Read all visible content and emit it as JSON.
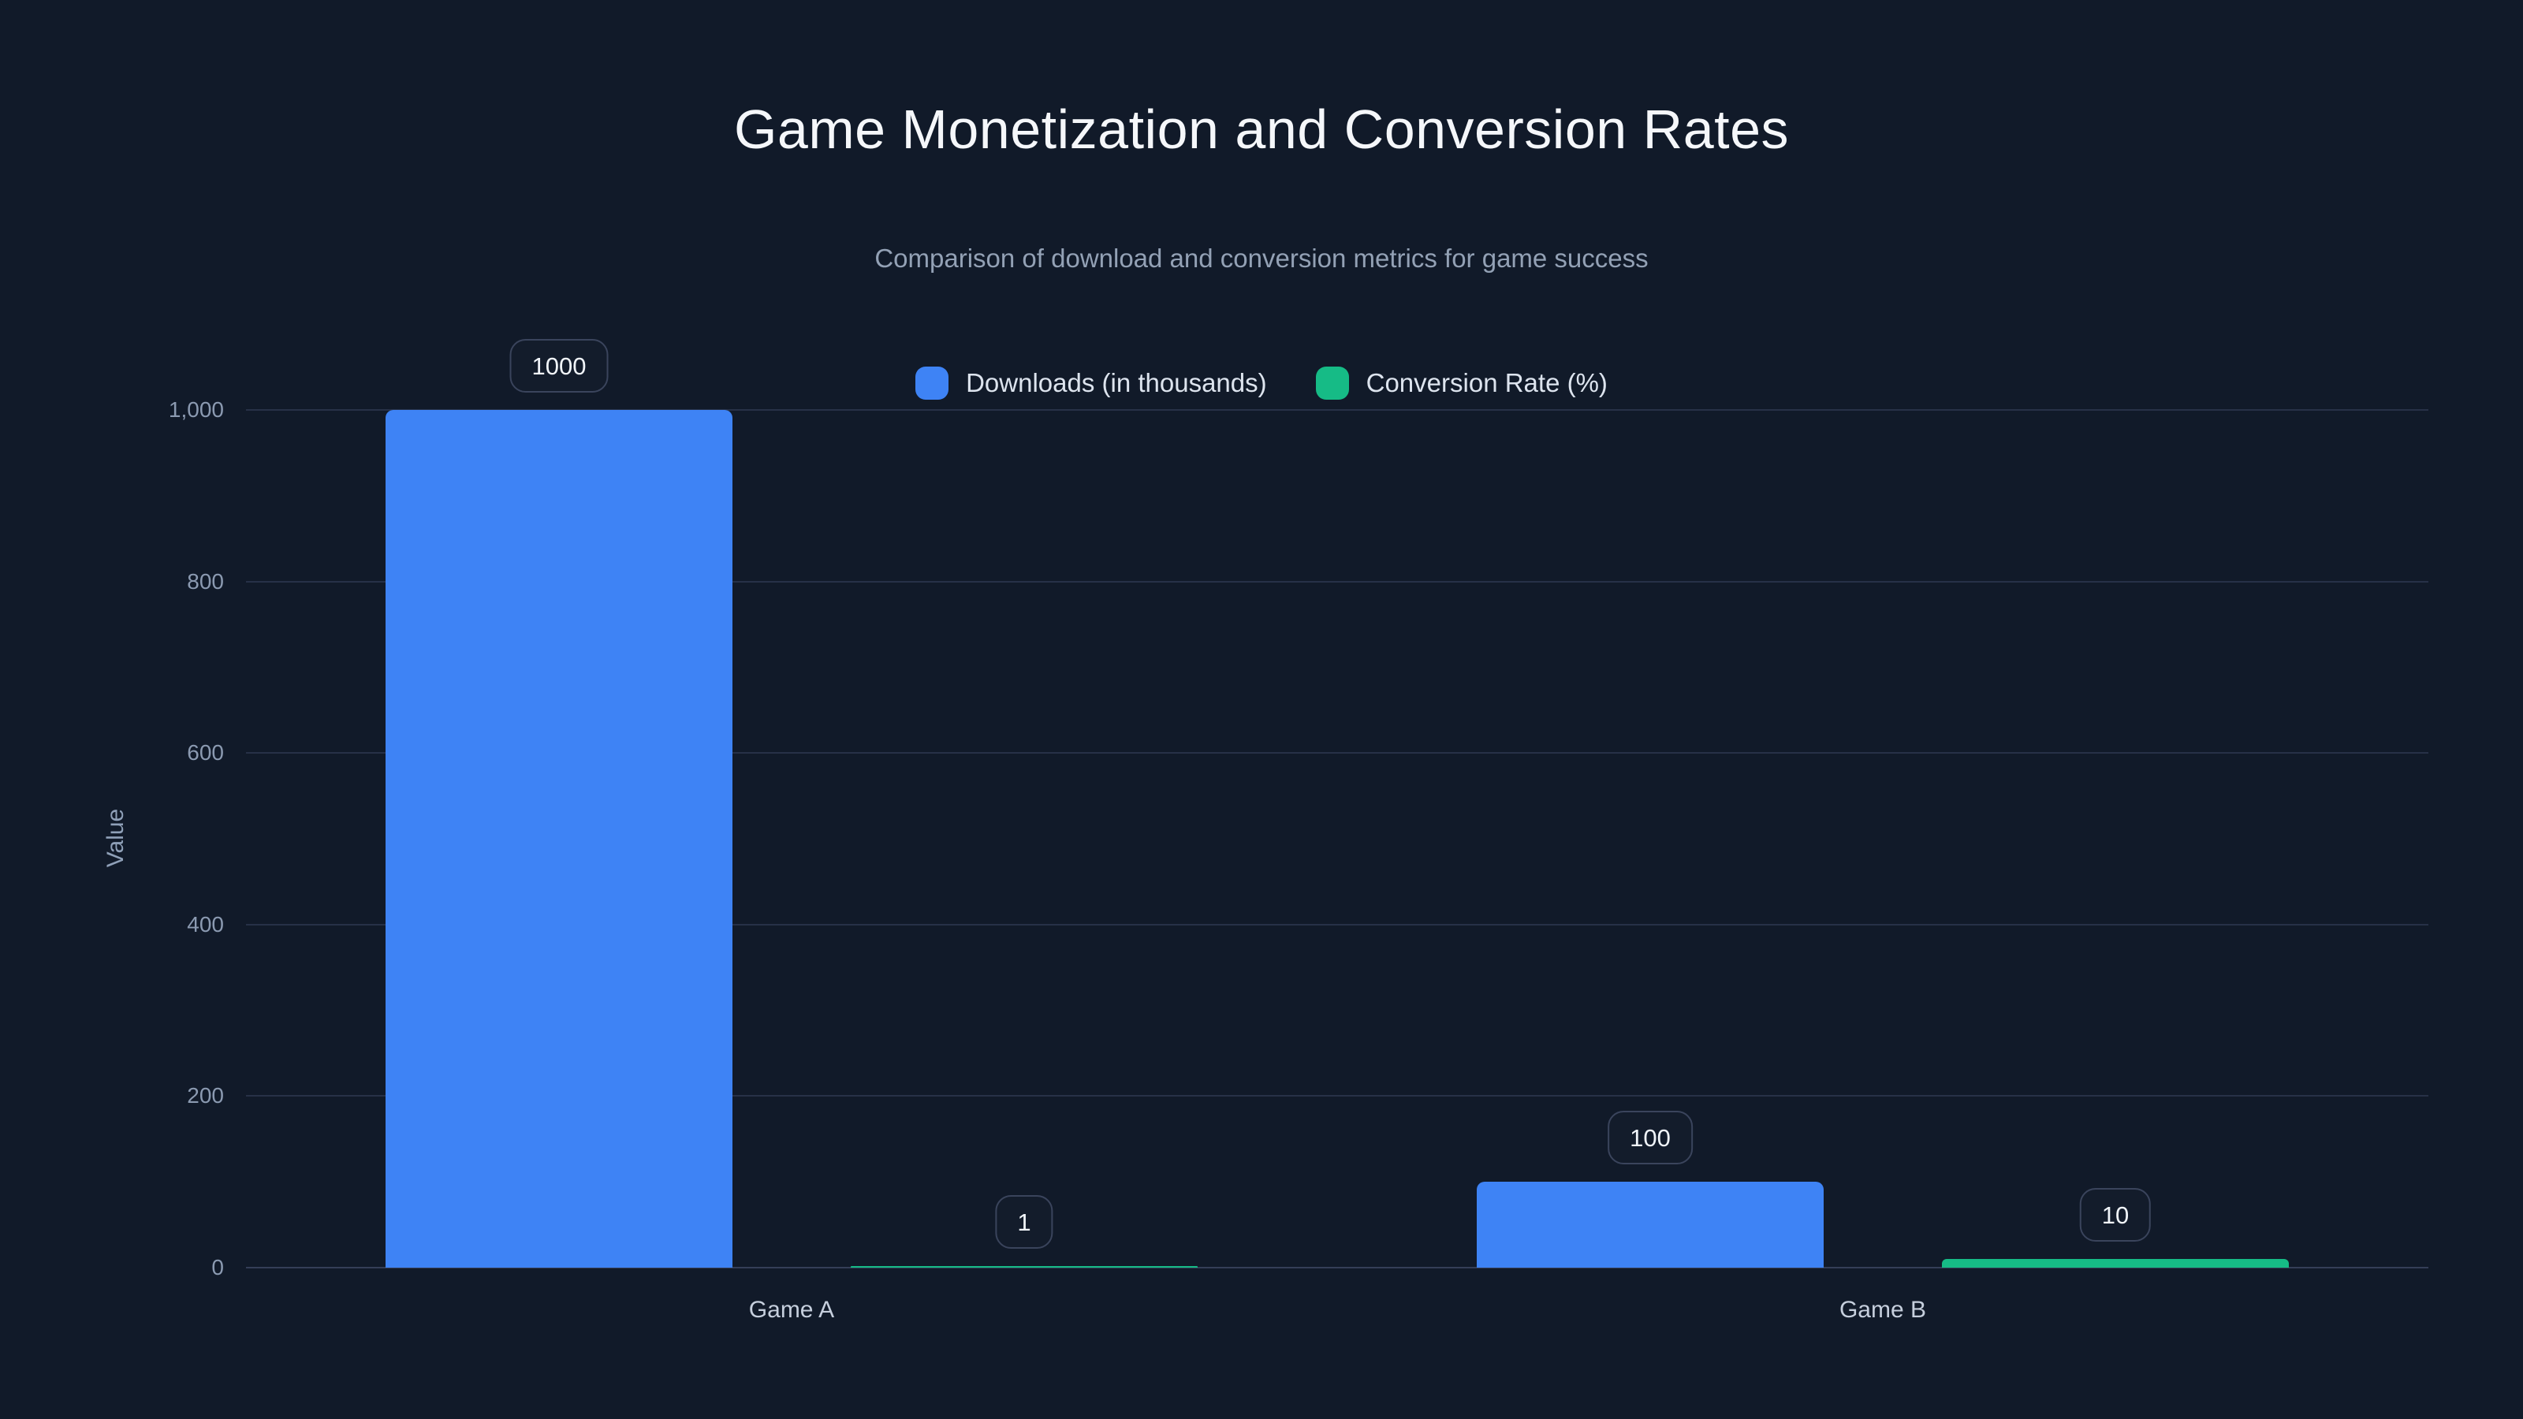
{
  "page": {
    "background": "#111a29"
  },
  "header": {
    "title": "Game Monetization and Conversion Rates",
    "subtitle": "Comparison of download and conversion metrics for game success"
  },
  "legend": {
    "position": "top-center",
    "items": [
      {
        "label": "Downloads (in thousands)",
        "color": "#3e83f5"
      },
      {
        "label": "Conversion Rate (%)",
        "color": "#16bb86"
      }
    ]
  },
  "chart_data": {
    "type": "bar",
    "title": "Game Monetization and Conversion Rates",
    "subtitle": "Comparison of download and conversion metrics for game success",
    "categories": [
      "Game A",
      "Game B"
    ],
    "series": [
      {
        "name": "Downloads (in thousands)",
        "color": "#3e83f5",
        "values": [
          1000,
          100
        ],
        "data_labels": [
          "1000",
          "100"
        ]
      },
      {
        "name": "Conversion Rate (%)",
        "color": "#16bb86",
        "values": [
          1,
          10
        ],
        "data_labels": [
          "1",
          "10"
        ]
      }
    ],
    "xlabel": "",
    "ylabel": "Value",
    "ylim": [
      0,
      1000
    ],
    "yticks": [
      0,
      200,
      400,
      600,
      800,
      1000
    ],
    "ytick_labels": [
      "0",
      "200",
      "400",
      "600",
      "800",
      "1,000"
    ],
    "grid": true,
    "legend_position": "top-center",
    "gridline_color": "#273147",
    "axis_line_color": "#343e57"
  }
}
